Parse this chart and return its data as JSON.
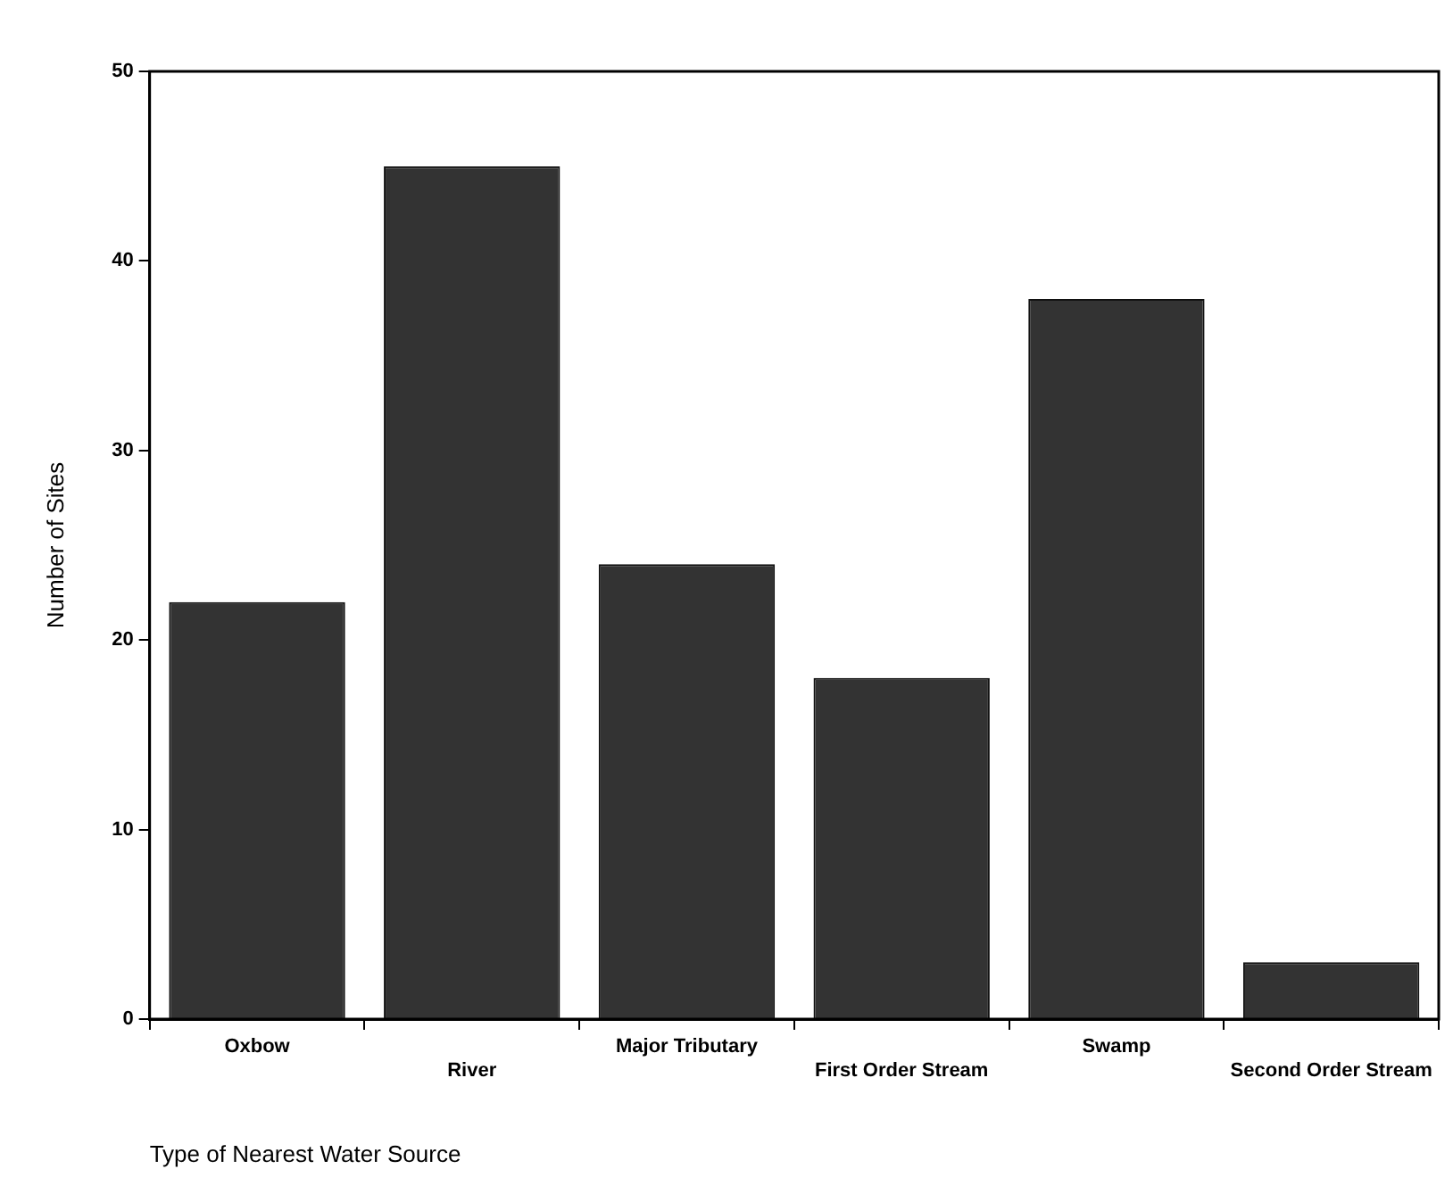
{
  "chart_data": {
    "type": "bar",
    "xlabel": "Type of Nearest Water Source",
    "ylabel": "Number of Sites",
    "categories": [
      "Oxbow",
      "River",
      "Major Tributary",
      "First Order Stream",
      "Swamp",
      "Second Order Stream"
    ],
    "values": [
      22,
      45,
      24,
      18,
      38,
      3
    ],
    "color": "#333333",
    "ylim": [
      0,
      50
    ],
    "yticks": [
      0,
      10,
      20,
      30,
      40,
      50
    ],
    "grid": false,
    "legend": false
  }
}
